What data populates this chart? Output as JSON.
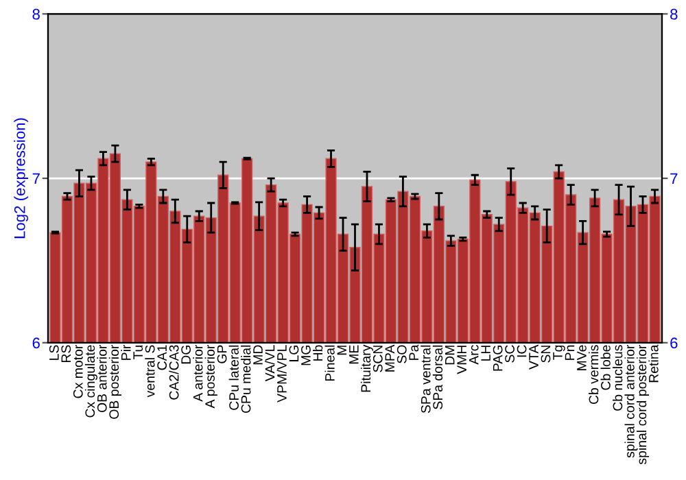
{
  "chart_data": {
    "type": "bar",
    "ylabel": "Log2 (expression)",
    "categories": [
      "LS",
      "RS",
      "Cx motor",
      "Cx cingulate",
      "OB anterior",
      "OB posterior",
      "Pir",
      "Tu",
      "ventral S",
      "CA1",
      "CA2/CA3",
      "DG",
      "A anterior",
      "A posterior",
      "GP",
      "CPu lateral",
      "CPu medial",
      "MD",
      "VA/VL",
      "VPM/VPL",
      "LG",
      "MG",
      "Hb",
      "Pineal",
      "M",
      "ME",
      "Pituitary",
      "SCN",
      "MPA",
      "SO",
      "Pa",
      "SPa ventral",
      "SPa dorsal",
      "DM",
      "VMH",
      "Arc",
      "LH",
      "PAG",
      "SC",
      "IC",
      "VTA",
      "SN",
      "Tg",
      "Pn",
      "MVe",
      "Cb vermis",
      "Cb lobe",
      "Cb nucleus",
      "spinal cord anterior",
      "spinal cord posterior",
      "Retina"
    ],
    "series": [
      {
        "color": "#b03030",
        "values": [
          6.67,
          6.89,
          6.97,
          6.97,
          7.12,
          7.15,
          6.87,
          6.83,
          7.1,
          6.89,
          6.8,
          6.69,
          6.77,
          6.76,
          7.02,
          6.85,
          7.12,
          6.77,
          6.96,
          6.85,
          6.66,
          6.84,
          6.79,
          7.12,
          6.66,
          6.58,
          6.95,
          6.66,
          6.87,
          6.92,
          6.89,
          6.68,
          6.83,
          6.62,
          6.63,
          6.99,
          6.78,
          6.72,
          6.98,
          6.82,
          6.79,
          6.71,
          7.04,
          6.9,
          6.67,
          6.88,
          6.66,
          6.87,
          6.83,
          6.84,
          6.89
        ],
        "errors": [
          0.005,
          0.02,
          0.08,
          0.04,
          0.04,
          0.05,
          0.06,
          0.01,
          0.02,
          0.04,
          0.07,
          0.08,
          0.03,
          0.09,
          0.08,
          0.005,
          0.005,
          0.085,
          0.04,
          0.02,
          0.01,
          0.05,
          0.035,
          0.05,
          0.1,
          0.14,
          0.09,
          0.06,
          0.01,
          0.09,
          0.015,
          0.04,
          0.08,
          0.03,
          0.01,
          0.03,
          0.02,
          0.04,
          0.08,
          0.03,
          0.04,
          0.1,
          0.04,
          0.06,
          0.07,
          0.05,
          0.015,
          0.09,
          0.12,
          0.05,
          0.04
        ]
      }
    ],
    "ylim": [
      6,
      8
    ],
    "yticks": [
      6,
      7,
      8
    ],
    "y2lim": [
      6,
      8
    ],
    "y2ticks": [
      6,
      7,
      8
    ],
    "grid": "y"
  }
}
